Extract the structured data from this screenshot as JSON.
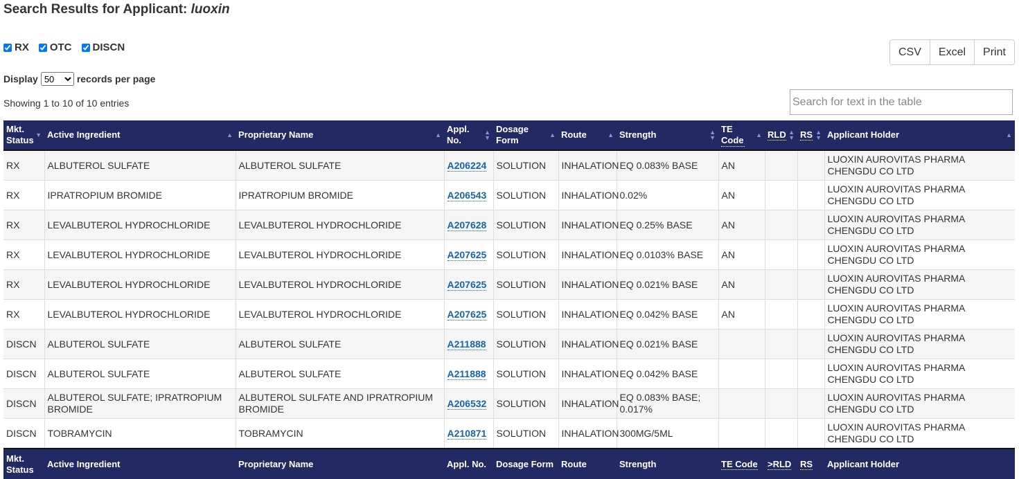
{
  "title_prefix": "Search Results for Applicant:",
  "title_query": "luoxin",
  "filters": [
    {
      "label": "RX",
      "checked": true
    },
    {
      "label": "OTC",
      "checked": true
    },
    {
      "label": "DISCN",
      "checked": true
    }
  ],
  "display": {
    "prefix": "Display",
    "value": "50",
    "suffix": "records per page"
  },
  "showing": "Showing 1 to 10 of 10 entries",
  "buttons": {
    "csv": "CSV",
    "excel": "Excel",
    "print": "Print"
  },
  "search_placeholder": "Search for text in the table",
  "header": {
    "mkt": "Mkt. Status",
    "active": "Active Ingredient",
    "proprietary": "Proprietary Name",
    "appl": "Appl. No.",
    "dosage": "Dosage Form",
    "route": "Route",
    "strength": "Strength",
    "te": "TE Code",
    "rld": "RLD",
    "rs": "RS",
    "holder": "Applicant Holder"
  },
  "footer": {
    "mkt": "Mkt. Status",
    "active": "Active Ingredient",
    "proprietary": "Proprietary Name",
    "appl": "Appl. No.",
    "dosage": "Dosage Form",
    "route": "Route",
    "strength": "Strength",
    "te": "TE Code",
    "rld": ">RLD",
    "rs": "RS",
    "holder": "Applicant Holder"
  },
  "rows": [
    [
      "RX",
      "ALBUTEROL SULFATE",
      "ALBUTEROL SULFATE",
      "A206224",
      "SOLUTION",
      "INHALATION",
      "EQ 0.083% BASE",
      "AN",
      "",
      "",
      "LUOXIN AUROVITAS PHARMA CHENGDU CO LTD"
    ],
    [
      "RX",
      "IPRATROPIUM BROMIDE",
      "IPRATROPIUM BROMIDE",
      "A206543",
      "SOLUTION",
      "INHALATION",
      "0.02%",
      "AN",
      "",
      "",
      "LUOXIN AUROVITAS PHARMA CHENGDU CO LTD"
    ],
    [
      "RX",
      "LEVALBUTEROL HYDROCHLORIDE",
      "LEVALBUTEROL HYDROCHLORIDE",
      "A207628",
      "SOLUTION",
      "INHALATION",
      "EQ 0.25% BASE",
      "AN",
      "",
      "",
      "LUOXIN AUROVITAS PHARMA CHENGDU CO LTD"
    ],
    [
      "RX",
      "LEVALBUTEROL HYDROCHLORIDE",
      "LEVALBUTEROL HYDROCHLORIDE",
      "A207625",
      "SOLUTION",
      "INHALATION",
      "EQ 0.0103% BASE",
      "AN",
      "",
      "",
      "LUOXIN AUROVITAS PHARMA CHENGDU CO LTD"
    ],
    [
      "RX",
      "LEVALBUTEROL HYDROCHLORIDE",
      "LEVALBUTEROL HYDROCHLORIDE",
      "A207625",
      "SOLUTION",
      "INHALATION",
      "EQ 0.021% BASE",
      "AN",
      "",
      "",
      "LUOXIN AUROVITAS PHARMA CHENGDU CO LTD"
    ],
    [
      "RX",
      "LEVALBUTEROL HYDROCHLORIDE",
      "LEVALBUTEROL HYDROCHLORIDE",
      "A207625",
      "SOLUTION",
      "INHALATION",
      "EQ 0.042% BASE",
      "AN",
      "",
      "",
      "LUOXIN AUROVITAS PHARMA CHENGDU CO LTD"
    ],
    [
      "DISCN",
      "ALBUTEROL SULFATE",
      "ALBUTEROL SULFATE",
      "A211888",
      "SOLUTION",
      "INHALATION",
      "EQ 0.021% BASE",
      "",
      "",
      "",
      "LUOXIN AUROVITAS PHARMA CHENGDU CO LTD"
    ],
    [
      "DISCN",
      "ALBUTEROL SULFATE",
      "ALBUTEROL SULFATE",
      "A211888",
      "SOLUTION",
      "INHALATION",
      "EQ 0.042% BASE",
      "",
      "",
      "",
      "LUOXIN AUROVITAS PHARMA CHENGDU CO LTD"
    ],
    [
      "DISCN",
      "ALBUTEROL SULFATE; IPRATROPIUM BROMIDE",
      "ALBUTEROL SULFATE AND IPRATROPIUM BROMIDE",
      "A206532",
      "SOLUTION",
      "INHALATION",
      "EQ 0.083% BASE; 0.017%",
      "",
      "",
      "",
      "LUOXIN AUROVITAS PHARMA CHENGDU CO LTD"
    ],
    [
      "DISCN",
      "TOBRAMYCIN",
      "TOBRAMYCIN",
      "A210871",
      "SOLUTION",
      "INHALATION",
      "300MG/5ML",
      "",
      "",
      "",
      "LUOXIN AUROVITAS PHARMA CHENGDU CO LTD"
    ]
  ]
}
